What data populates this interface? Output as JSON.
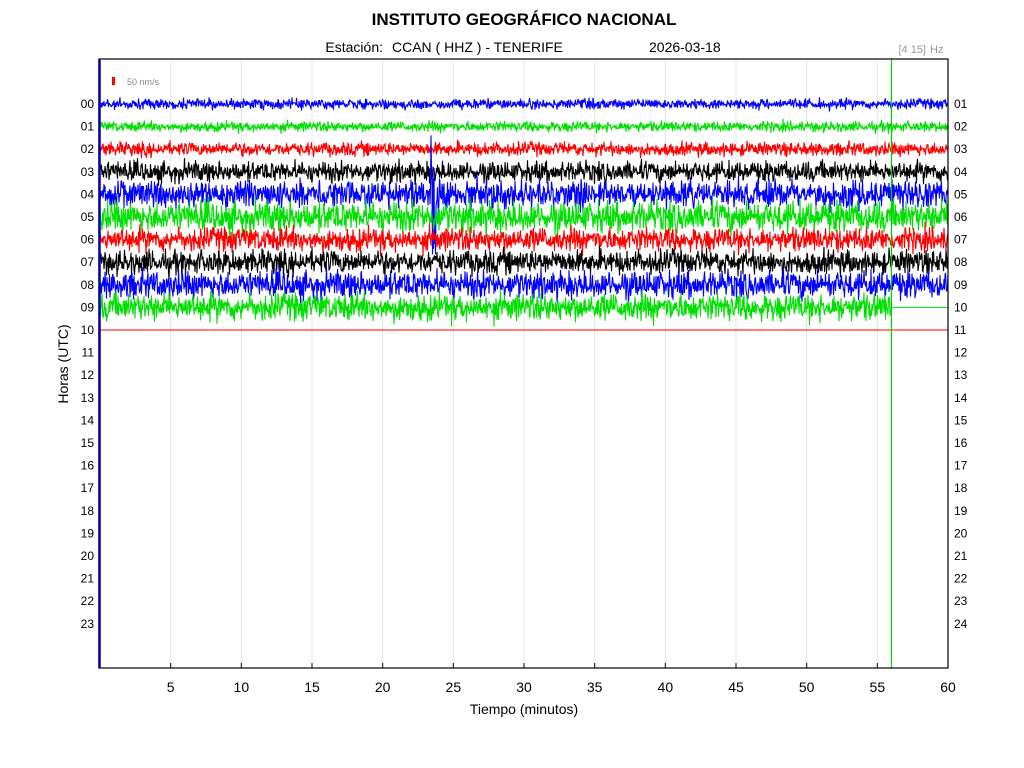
{
  "header": {
    "title": "INSTITUTO GEOGRÁFICO NACIONAL",
    "station_label": "Estación:",
    "station_value": "CCAN ( HHZ ) - TENERIFE",
    "date": "2026-03-18",
    "filter_band": "[4 15]",
    "filter_unit": "Hz"
  },
  "scale_bar": {
    "label": "50 nm/s",
    "color": "#ff0000"
  },
  "chart_data": {
    "type": "line",
    "chart_kind": "helicorder seismogram",
    "xlabel": "Tiempo (minutos)",
    "ylabel": "Horas (UTC)",
    "xlim": [
      0,
      60
    ],
    "x_ticks": [
      5,
      10,
      15,
      20,
      25,
      30,
      35,
      40,
      45,
      50,
      55,
      60
    ],
    "grid": true,
    "left_tick_labels": [
      "00",
      "01",
      "02",
      "03",
      "04",
      "05",
      "06",
      "07",
      "08",
      "09",
      "10",
      "11",
      "12",
      "13",
      "14",
      "15",
      "16",
      "17",
      "18",
      "19",
      "20",
      "21",
      "22",
      "23"
    ],
    "right_tick_labels": [
      "01",
      "02",
      "03",
      "04",
      "05",
      "06",
      "07",
      "08",
      "09",
      "10",
      "11",
      "12",
      "13",
      "14",
      "15",
      "16",
      "17",
      "18",
      "19",
      "20",
      "21",
      "22",
      "23",
      "24"
    ],
    "trace_color_cycle": [
      "#0000ff",
      "#00e000",
      "#ff0000",
      "#000000"
    ],
    "current_time_marker_minute": 56,
    "current_time_marker_color": "#00cc00",
    "traces": [
      {
        "hour": "00",
        "color": "#0000ff",
        "end_minute": 60,
        "noise_nm_s": 3
      },
      {
        "hour": "01",
        "color": "#00e000",
        "end_minute": 60,
        "noise_nm_s": 3
      },
      {
        "hour": "02",
        "color": "#ff0000",
        "end_minute": 60,
        "noise_nm_s": 4
      },
      {
        "hour": "03",
        "color": "#000000",
        "end_minute": 60,
        "noise_nm_s": 6
      },
      {
        "hour": "04",
        "color": "#0000ff",
        "end_minute": 60,
        "noise_nm_s": 8,
        "event": {
          "minute": 23.5,
          "peak_nm_s": 80
        }
      },
      {
        "hour": "05",
        "color": "#00e000",
        "end_minute": 60,
        "noise_nm_s": 9
      },
      {
        "hour": "06",
        "color": "#ff0000",
        "end_minute": 60,
        "noise_nm_s": 7
      },
      {
        "hour": "07",
        "color": "#000000",
        "end_minute": 60,
        "noise_nm_s": 7
      },
      {
        "hour": "08",
        "color": "#0000ff",
        "end_minute": 60,
        "noise_nm_s": 8
      },
      {
        "hour": "09",
        "color": "#00e000",
        "end_minute": 56,
        "noise_nm_s": 8
      },
      {
        "hour": "10",
        "color": "#ff0000",
        "end_minute": 60,
        "noise_nm_s": 0
      }
    ]
  }
}
